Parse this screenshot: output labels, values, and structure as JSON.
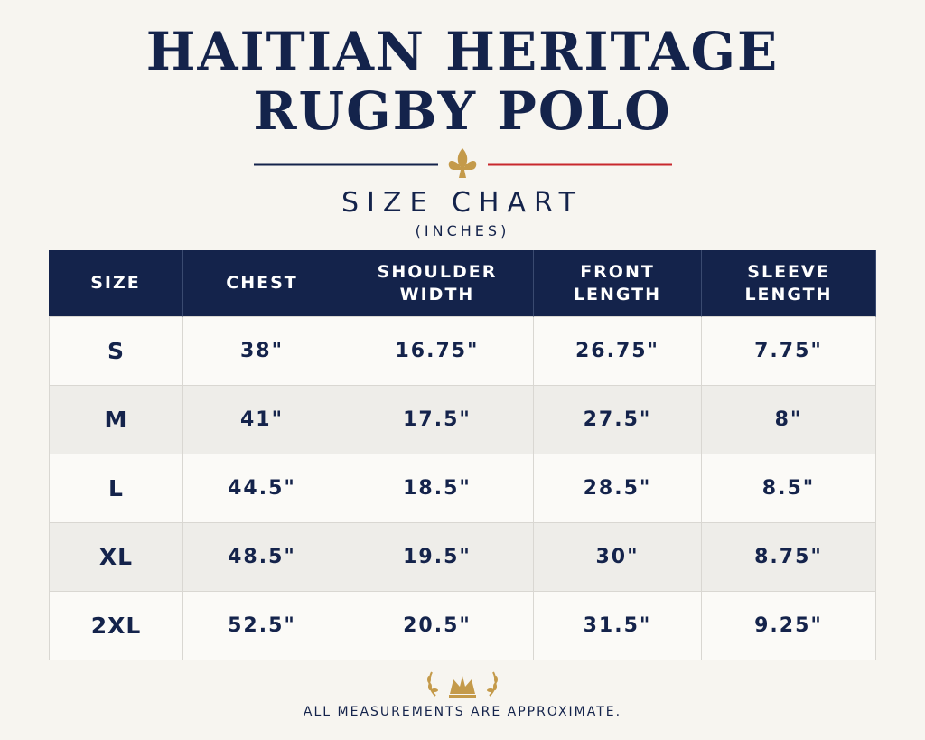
{
  "header": {
    "title_lines": [
      "HAITIAN HERITAGE",
      "RUGBY POLO"
    ],
    "subtitle": "SIZE CHART",
    "unit_note": "(INCHES)"
  },
  "table": {
    "columns": [
      [
        "SIZE"
      ],
      [
        "CHEST"
      ],
      [
        "SHOULDER",
        "WIDTH"
      ],
      [
        "FRONT",
        "LENGTH"
      ],
      [
        "SLEEVE",
        "LENGTH"
      ]
    ],
    "rows": [
      [
        "S",
        "38\"",
        "16.75\"",
        "26.75\"",
        "7.75\""
      ],
      [
        "M",
        "41\"",
        "17.5\"",
        "27.5\"",
        "8\""
      ],
      [
        "L",
        "44.5\"",
        "18.5\"",
        "28.5\"",
        "8.5\""
      ],
      [
        "XL",
        "48.5\"",
        "19.5\"",
        "30\"",
        "8.75\""
      ],
      [
        "2XL",
        "52.5\"",
        "20.5\"",
        "31.5\"",
        "9.25\""
      ]
    ]
  },
  "footer": {
    "note": "ALL MEASUREMENTS ARE APPROXIMATE."
  }
}
